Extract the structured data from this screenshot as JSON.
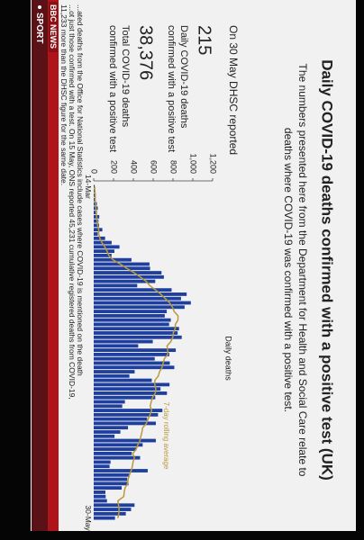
{
  "chart_data": {
    "type": "bar",
    "title": "Daily COVID-19 deaths confirmed with a positive test (UK)",
    "subtitle": [
      "The numbers presented here from the Department for Health and Social Care relate to",
      "deaths where COVID-19 was confirmed with a positive test."
    ],
    "panel": {
      "heading": "On 30 May DHSC reported",
      "daily_value": "215",
      "daily_label": [
        "Daily COVID-19 deaths",
        "confirmed with a positive test"
      ],
      "total_value": "38,376",
      "total_label": [
        "Total COVID-19 deaths",
        "confirmed with a positive test"
      ]
    },
    "y_label": "Daily deaths",
    "categories": [
      "14-Mar",
      null,
      null,
      null,
      null,
      null,
      null,
      null,
      null,
      null,
      null,
      null,
      null,
      null,
      null,
      null,
      null,
      null,
      null,
      null,
      null,
      null,
      null,
      null,
      null,
      null,
      null,
      null,
      null,
      null,
      null,
      null,
      null,
      null,
      null,
      null,
      null,
      null,
      null,
      null,
      null,
      null,
      null,
      null,
      null,
      null,
      null,
      null,
      null,
      null,
      null,
      null,
      null,
      null,
      null,
      null,
      null,
      null,
      null,
      null,
      null,
      null,
      null,
      null,
      null,
      null,
      null,
      null,
      null,
      null,
      null,
      null,
      null,
      null,
      null,
      null,
      null,
      "30-May"
    ],
    "series": [
      {
        "color": "#1f3f9e",
        "values": [
          10,
          14,
          20,
          16,
          32,
          41,
          33,
          56,
          48,
          54,
          87,
          41,
          115,
          181,
          260,
          209,
          180,
          381,
          563,
          569,
          684,
          708,
          621,
          439,
          786,
          938,
          881,
          980,
          917,
          737,
          717,
          778,
          761,
          861,
          847,
          888,
          596,
          449,
          828,
          763,
          616,
          768,
          813,
          413,
          360,
          586,
          765,
          674,
          739,
          621,
          315,
          288,
          693,
          649,
          539,
          627,
          346,
          269,
          210,
          627,
          494,
          428,
          384,
          468,
          170,
          160,
          545,
          363,
          338,
          351,
          282,
          118,
          121,
          134,
          412,
          377,
          324,
          215
        ]
      },
      {
        "name": "7-day rolling average",
        "type": "line",
        "color": "#b99a3a",
        "values": [
          10,
          12,
          15,
          15,
          18,
          22,
          24,
          30,
          35,
          40,
          50,
          51,
          62,
          83,
          112,
          135,
          153,
          195,
          270,
          335,
          407,
          471,
          529,
          566,
          624,
          678,
          722,
          765,
          795,
          811,
          851,
          850,
          824,
          822,
          803,
          798,
          778,
          740,
          747,
          747,
          712,
          701,
          690,
          664,
          652,
          617,
          617,
          626,
          621,
          594,
          580,
          570,
          585,
          568,
          549,
          533,
          494,
          487,
          476,
          467,
          445,
          429,
          394,
          411,
          397,
          390,
          378,
          360,
          347,
          342,
          316,
          308,
          303,
          244,
          251,
          256,
          253,
          243
        ]
      }
    ],
    "ylim": [
      0,
      1200
    ],
    "yticks": [
      0,
      200,
      400,
      600,
      800,
      {
        "value": 1000,
        "label": "1,000"
      },
      {
        "value": 1200,
        "label": "1,200"
      }
    ],
    "footnote": [
      "...ated deaths from the Office for National Statistics include cases where COVID-19 is mentioned on the death",
      "...ot just those confirmed with a test. On 15 May, ONS reported 45,231 cumulative registered deaths from COVID-19,",
      "11,233 more than the DHSC figure for the same date."
    ],
    "logo": "BBC NEWS",
    "ticker": "SPORT"
  }
}
